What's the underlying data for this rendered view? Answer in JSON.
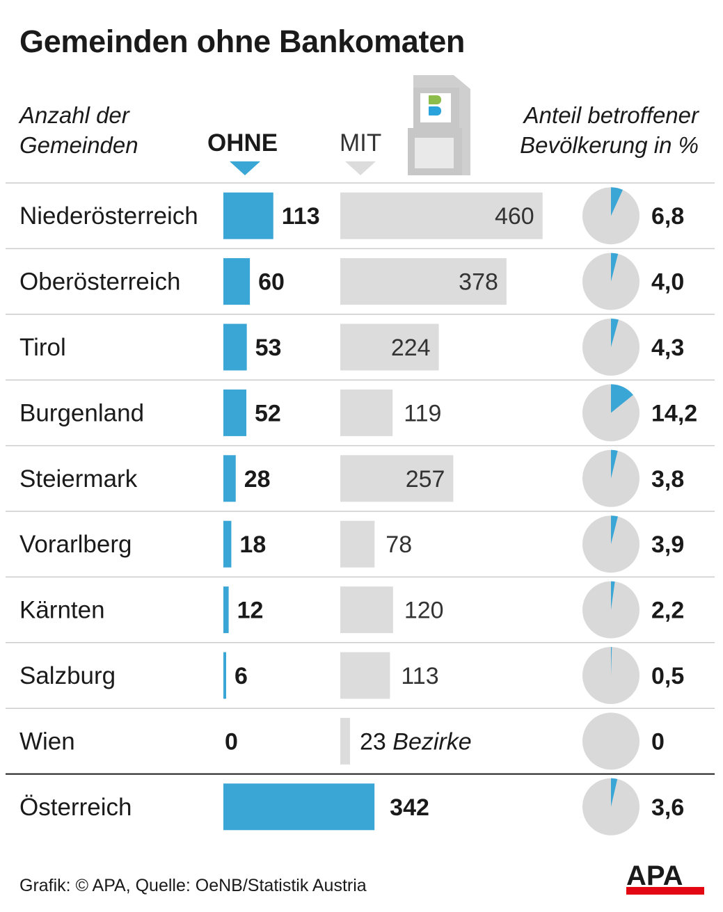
{
  "title": "Gemeinden ohne Bankomaten",
  "header": {
    "left_line1": "Anzahl der",
    "left_line2": "Gemeinden",
    "ohne": "OHNE",
    "mit": "MIT",
    "right_line1": "Anteil betroffener",
    "right_line2": "Bevölkerung in %"
  },
  "footer": "Grafik: © APA, Quelle: OeNB/Statistik Austria",
  "logo_text": "APA",
  "colors": {
    "ohne": "#3aa6d5",
    "mit": "#dcdcdc",
    "pie": "#d9d9d9",
    "slice": "#3aa6d5",
    "rule": "#cccccc",
    "total_rule": "#1a1a1a"
  },
  "chart_data": {
    "type": "bar",
    "categories": [
      "Niederösterreich",
      "Oberösterreich",
      "Tirol",
      "Burgenland",
      "Steiermark",
      "Vorarlberg",
      "Kärnten",
      "Salzburg",
      "Wien"
    ],
    "series": [
      {
        "name": "OHNE",
        "values": [
          113,
          60,
          53,
          52,
          28,
          18,
          12,
          6,
          0
        ]
      },
      {
        "name": "MIT",
        "values": [
          460,
          378,
          224,
          119,
          257,
          78,
          120,
          113,
          23
        ]
      },
      {
        "name": "Anteil betroffener Bevölkerung in %",
        "values": [
          6.8,
          4.0,
          4.3,
          14.2,
          3.8,
          3.9,
          2.2,
          0.5,
          0
        ]
      }
    ],
    "pct_labels": [
      "6,8",
      "4,0",
      "4,3",
      "14,2",
      "3,8",
      "3,9",
      "2,2",
      "0,5",
      "0"
    ],
    "mit_suffix_wien": "Bezirke",
    "total": {
      "label": "Österreich",
      "ohne": 342,
      "pct": 3.6,
      "pct_label": "3,6"
    }
  }
}
